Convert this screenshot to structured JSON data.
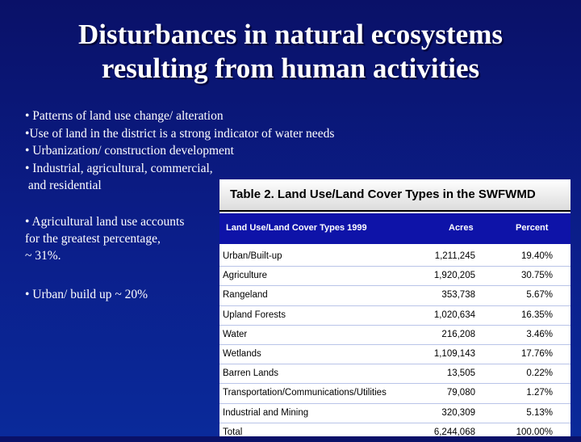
{
  "slide": {
    "title_line1": "Disturbances in natural ecosystems",
    "title_line2": "resulting from human activities",
    "bullets_top": [
      "• Patterns of land use change/ alteration",
      "•Use of land in the district is a strong indicator of water needs",
      "• Urbanization/ construction development",
      "• Industrial, agricultural, commercial,",
      " and residential"
    ],
    "bullets_left": {
      "ag_line1": "• Agricultural land use accounts",
      "ag_line2": "for the greatest percentage,",
      "ag_line3": "~ 31%.",
      "urban": "• Urban/ build up ~ 20%"
    }
  },
  "table": {
    "title": "Table 2.  Land Use/Land Cover Types in the SWFWMD",
    "headers": {
      "type": "Land Use/Land Cover Types 1999",
      "acres": "Acres",
      "percent": "Percent"
    },
    "rows": [
      {
        "type": "Urban/Built-up",
        "acres": "1,211,245",
        "percent": "19.40%"
      },
      {
        "type": "Agriculture",
        "acres": "1,920,205",
        "percent": "30.75%"
      },
      {
        "type": "Rangeland",
        "acres": "353,738",
        "percent": "5.67%"
      },
      {
        "type": "Upland Forests",
        "acres": "1,020,634",
        "percent": "16.35%"
      },
      {
        "type": "Water",
        "acres": "216,208",
        "percent": "3.46%"
      },
      {
        "type": "Wetlands",
        "acres": "1,109,143",
        "percent": "17.76%"
      },
      {
        "type": "Barren Lands",
        "acres": "13,505",
        "percent": "0.22%"
      },
      {
        "type": "Transportation/Communications/Utilities",
        "acres": "79,080",
        "percent": "1.27%"
      },
      {
        "type": "Industrial and Mining",
        "acres": "320,309",
        "percent": "5.13%"
      },
      {
        "type": "Total",
        "acres": "6,244,068",
        "percent": "100.00%"
      }
    ]
  }
}
